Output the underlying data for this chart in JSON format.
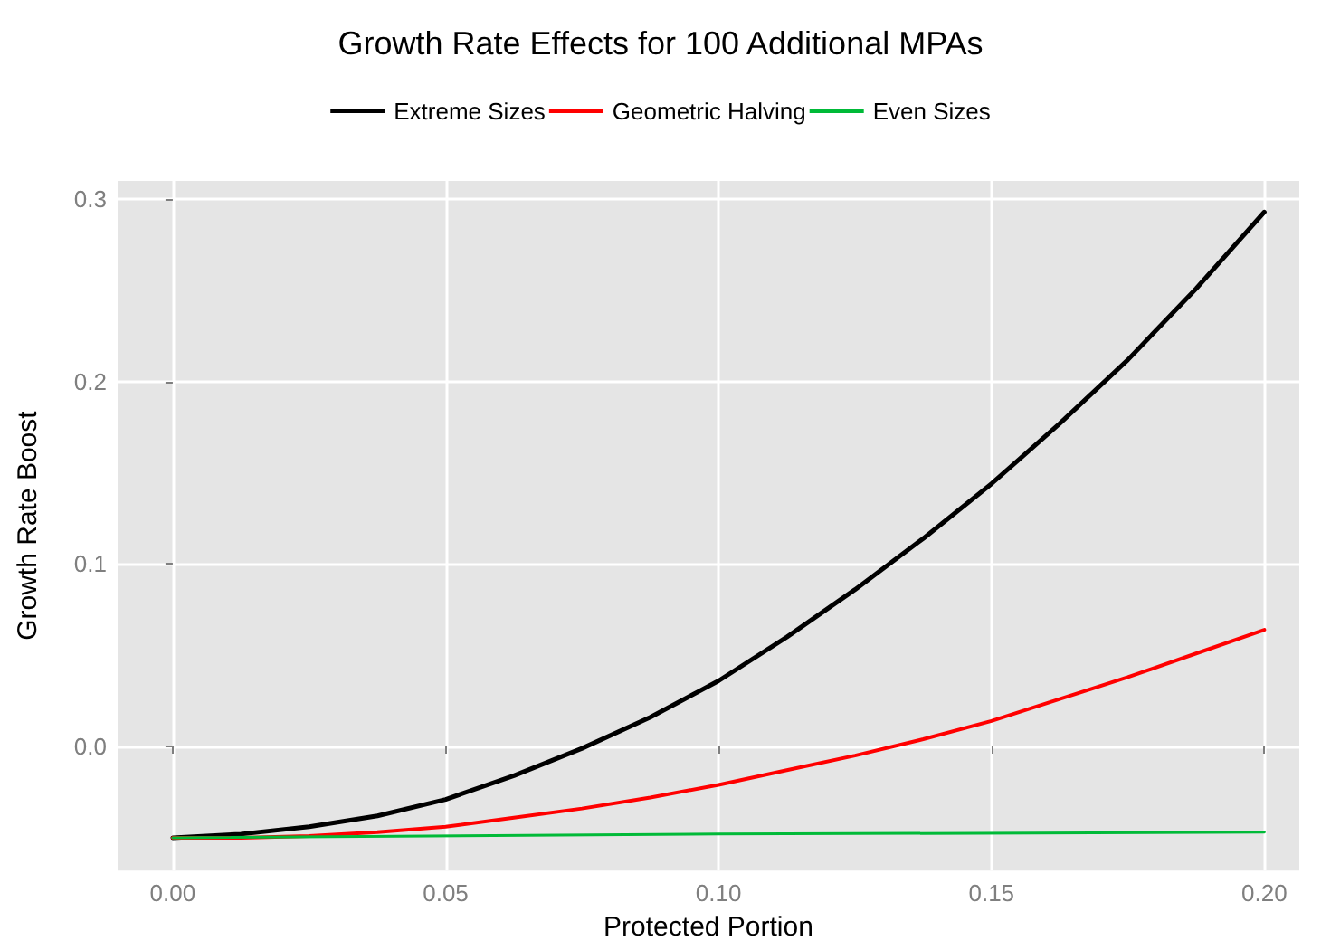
{
  "chart_data": {
    "type": "line",
    "title": "Growth Rate Effects for 100 Additional MPAs",
    "xlabel": "Protected Portion",
    "ylabel": "Growth Rate Boost",
    "x": [
      0,
      0.0125,
      0.025,
      0.0375,
      0.05,
      0.0625,
      0.075,
      0.0875,
      0.1,
      0.1125,
      0.125,
      0.1375,
      0.15,
      0.1625,
      0.175,
      0.1875,
      0.2
    ],
    "series": [
      {
        "name": "Extreme Sizes",
        "color": "#000000",
        "values": [
          -0.05,
          -0.048,
          -0.044,
          -0.038,
          -0.029,
          -0.016,
          -0.001,
          0.016,
          0.036,
          0.06,
          0.086,
          0.114,
          0.144,
          0.177,
          0.212,
          0.251,
          0.293
        ]
      },
      {
        "name": "Geometric Halving",
        "color": "#ff0000",
        "values": [
          -0.05,
          -0.05,
          -0.049,
          -0.047,
          -0.044,
          -0.039,
          -0.034,
          -0.028,
          -0.021,
          -0.013,
          -0.005,
          0.004,
          0.014,
          0.026,
          0.038,
          0.051,
          0.064
        ]
      },
      {
        "name": "Even Sizes",
        "color": "#00ba38",
        "x": [
          0,
          0.1,
          0.2
        ],
        "values": [
          -0.05,
          -0.048,
          -0.047
        ]
      }
    ],
    "xlim": [
      -0.0101,
      0.2064
    ],
    "xticks": [
      {
        "value": 0,
        "label": "0.00"
      },
      0.05,
      {
        "value": 0.1,
        "label": "0.10"
      },
      0.15,
      {
        "value": 0.2,
        "label": "0.20"
      }
    ],
    "ylim": [
      -0.068,
      0.31
    ],
    "yticks": [
      {
        "value": 0,
        "label": "0.0"
      },
      0.1,
      0.2,
      0.3
    ],
    "grid": true,
    "legend": "top",
    "marker": "none",
    "line_style": "solid"
  }
}
